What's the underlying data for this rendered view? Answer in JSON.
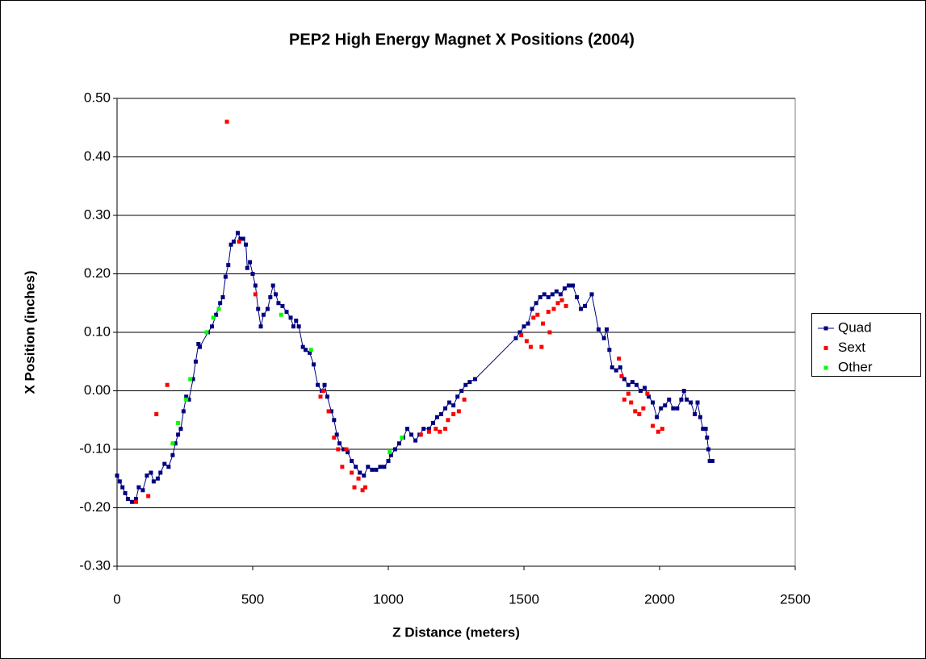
{
  "chart_data": {
    "type": "scatter",
    "title": "PEP2 High Energy Magnet X Positions (2004)",
    "x_label": "Z Distance (meters)",
    "y_label": "X Position (inches)",
    "xlim": [
      0,
      2500
    ],
    "xticks": [
      0,
      500,
      1000,
      1500,
      2000,
      2500
    ],
    "ylim": [
      -0.3,
      0.5
    ],
    "yticks": [
      {
        "value": -0.3,
        "label": "-0.30"
      },
      {
        "value": -0.2,
        "label": "-0.20"
      },
      {
        "value": -0.1,
        "label": "-0.10"
      },
      {
        "value": 0,
        "label": "0.00"
      },
      {
        "value": 0.1,
        "label": "0.10"
      },
      {
        "value": 0.2,
        "label": "0.20"
      },
      {
        "value": 0.3,
        "label": "0.30"
      },
      {
        "value": 0.4,
        "label": "0.40"
      },
      {
        "value": 0.5,
        "label": "0.50"
      }
    ],
    "grid": true,
    "legend": "right",
    "series": [
      {
        "name": "Quad",
        "color": "#000080",
        "line": true,
        "x": [
          0,
          10,
          20,
          30,
          40,
          55,
          70,
          80,
          95,
          110,
          125,
          135,
          150,
          160,
          175,
          190,
          205,
          215,
          225,
          235,
          245,
          255,
          265,
          280,
          290,
          300,
          305,
          335,
          350,
          365,
          380,
          390,
          400,
          410,
          420,
          430,
          445,
          455,
          465,
          475,
          480,
          490,
          500,
          510,
          520,
          530,
          540,
          555,
          565,
          575,
          585,
          595,
          610,
          625,
          640,
          650,
          660,
          670,
          685,
          695,
          710,
          725,
          740,
          755,
          765,
          775,
          790,
          800,
          810,
          820,
          835,
          850,
          865,
          880,
          895,
          910,
          925,
          940,
          955,
          970,
          985,
          1000,
          1010,
          1025,
          1040,
          1055,
          1070,
          1085,
          1100,
          1115,
          1130,
          1150,
          1165,
          1180,
          1195,
          1210,
          1225,
          1240,
          1255,
          1270,
          1285,
          1300,
          1320,
          1470,
          1485,
          1500,
          1515,
          1530,
          1545,
          1560,
          1575,
          1590,
          1605,
          1620,
          1635,
          1650,
          1665,
          1680,
          1695,
          1710,
          1725,
          1750,
          1775,
          1795,
          1805,
          1815,
          1825,
          1840,
          1855,
          1870,
          1885,
          1900,
          1915,
          1930,
          1945,
          1960,
          1975,
          1990,
          2005,
          2020,
          2035,
          2050,
          2065,
          2080,
          2090,
          2100,
          2115,
          2130,
          2140,
          2150,
          2160,
          2170,
          2175,
          2180,
          2185,
          2195
        ],
        "values": [
          -0.145,
          -0.155,
          -0.165,
          -0.175,
          -0.185,
          -0.19,
          -0.185,
          -0.165,
          -0.17,
          -0.145,
          -0.14,
          -0.155,
          -0.15,
          -0.14,
          -0.125,
          -0.13,
          -0.11,
          -0.09,
          -0.075,
          -0.065,
          -0.035,
          -0.01,
          -0.015,
          0.02,
          0.05,
          0.08,
          0.075,
          0.1,
          0.11,
          0.13,
          0.15,
          0.16,
          0.195,
          0.215,
          0.25,
          0.255,
          0.27,
          0.26,
          0.26,
          0.25,
          0.21,
          0.22,
          0.2,
          0.18,
          0.14,
          0.11,
          0.13,
          0.14,
          0.16,
          0.18,
          0.165,
          0.15,
          0.145,
          0.135,
          0.125,
          0.11,
          0.12,
          0.11,
          0.075,
          0.07,
          0.065,
          0.045,
          0.01,
          0.0,
          0.01,
          -0.01,
          -0.035,
          -0.05,
          -0.075,
          -0.09,
          -0.1,
          -0.105,
          -0.12,
          -0.13,
          -0.14,
          -0.145,
          -0.13,
          -0.135,
          -0.135,
          -0.13,
          -0.13,
          -0.12,
          -0.11,
          -0.1,
          -0.09,
          -0.08,
          -0.065,
          -0.075,
          -0.085,
          -0.075,
          -0.065,
          -0.065,
          -0.055,
          -0.045,
          -0.04,
          -0.03,
          -0.02,
          -0.025,
          -0.01,
          0.0,
          0.01,
          0.015,
          0.02,
          0.09,
          0.1,
          0.11,
          0.115,
          0.14,
          0.15,
          0.16,
          0.165,
          0.16,
          0.165,
          0.17,
          0.165,
          0.175,
          0.18,
          0.18,
          0.16,
          0.14,
          0.145,
          0.165,
          0.105,
          0.09,
          0.105,
          0.07,
          0.04,
          0.035,
          0.04,
          0.02,
          0.01,
          0.015,
          0.01,
          0.0,
          0.005,
          -0.01,
          -0.02,
          -0.045,
          -0.03,
          -0.025,
          -0.015,
          -0.03,
          -0.03,
          -0.015,
          0.0,
          -0.015,
          -0.02,
          -0.04,
          -0.02,
          -0.045,
          -0.065,
          -0.065,
          -0.08,
          -0.1,
          -0.12,
          -0.12
        ]
      },
      {
        "name": "Sext",
        "color": "#ff0000",
        "line": false,
        "x": [
          70,
          115,
          145,
          185,
          405,
          450,
          510,
          750,
          760,
          780,
          800,
          815,
          830,
          845,
          865,
          875,
          890,
          905,
          915,
          1120,
          1150,
          1175,
          1190,
          1210,
          1220,
          1240,
          1260,
          1280,
          1490,
          1510,
          1525,
          1535,
          1550,
          1565,
          1570,
          1590,
          1595,
          1610,
          1625,
          1640,
          1655,
          1850,
          1860,
          1870,
          1885,
          1895,
          1910,
          1925,
          1940,
          1955,
          1975,
          1995,
          2010
        ],
        "values": [
          -0.19,
          -0.18,
          -0.04,
          0.01,
          0.46,
          0.255,
          0.165,
          -0.01,
          0.0,
          -0.035,
          -0.08,
          -0.1,
          -0.13,
          -0.1,
          -0.14,
          -0.165,
          -0.15,
          -0.17,
          -0.165,
          -0.075,
          -0.07,
          -0.065,
          -0.07,
          -0.065,
          -0.05,
          -0.04,
          -0.035,
          -0.015,
          0.095,
          0.085,
          0.075,
          0.125,
          0.13,
          0.075,
          0.115,
          0.135,
          0.1,
          0.14,
          0.15,
          0.155,
          0.145,
          0.055,
          0.025,
          -0.015,
          -0.005,
          -0.02,
          -0.035,
          -0.04,
          -0.03,
          -0.005,
          -0.06,
          -0.07,
          -0.065
        ]
      },
      {
        "name": "Other",
        "color": "#00ff00",
        "line": false,
        "x": [
          205,
          225,
          255,
          270,
          330,
          355,
          375,
          605,
          715,
          1005,
          1050
        ],
        "values": [
          -0.09,
          -0.055,
          -0.015,
          0.02,
          0.1,
          0.125,
          0.14,
          0.13,
          0.07,
          -0.105,
          -0.08
        ]
      }
    ]
  }
}
